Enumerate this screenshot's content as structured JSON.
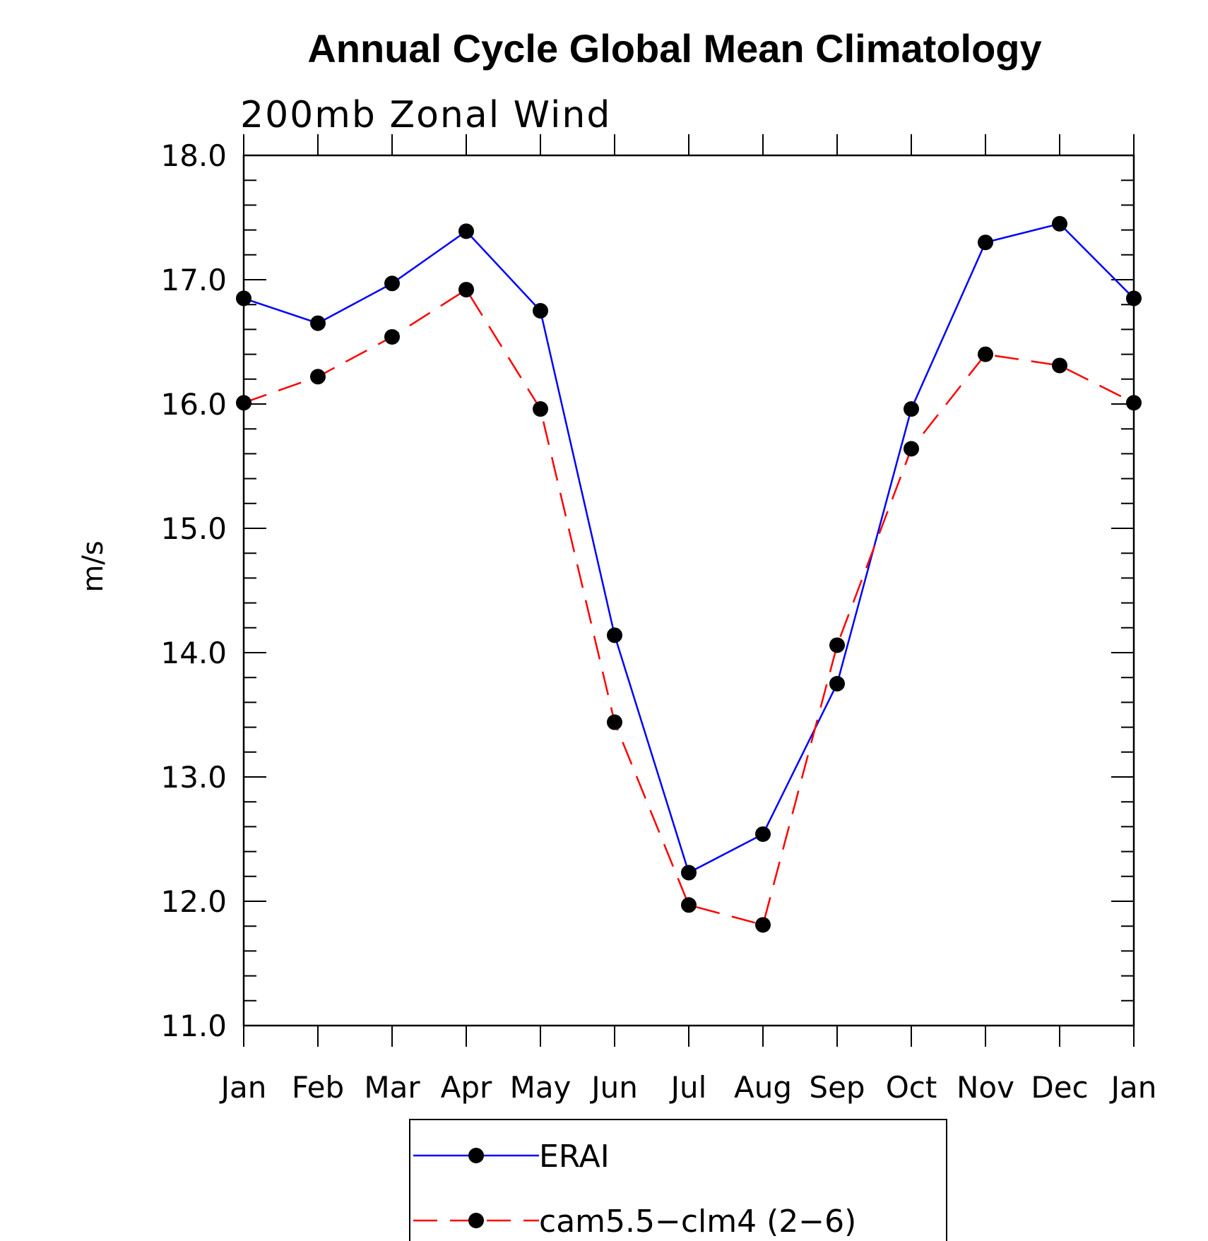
{
  "chart_data": {
    "type": "line",
    "title": "Annual Cycle Global Mean Climatology",
    "subtitle": "200mb Zonal Wind",
    "xlabel": "",
    "ylabel": "m/s",
    "categories": [
      "Jan",
      "Feb",
      "Mar",
      "Apr",
      "May",
      "Jun",
      "Jul",
      "Aug",
      "Sep",
      "Oct",
      "Nov",
      "Dec",
      "Jan"
    ],
    "ylim": [
      11.0,
      18.0
    ],
    "yticks": [
      "11.0",
      "12.0",
      "13.0",
      "14.0",
      "15.0",
      "16.0",
      "17.0",
      "18.0"
    ],
    "grid": false,
    "legend_position": "bottom",
    "series": [
      {
        "name": "ERAI",
        "color": "#0000ff",
        "dash": "solid",
        "values": [
          16.85,
          16.65,
          16.97,
          17.39,
          16.75,
          14.14,
          12.23,
          12.54,
          13.75,
          15.96,
          17.3,
          17.45,
          16.85
        ]
      },
      {
        "name": "cam5.5−clm4 (2−6)",
        "color": "#ff0000",
        "dash": "dashed",
        "values": [
          16.01,
          16.22,
          16.54,
          16.92,
          15.96,
          13.44,
          11.97,
          11.81,
          14.06,
          15.64,
          16.4,
          16.31,
          16.01
        ]
      }
    ]
  }
}
